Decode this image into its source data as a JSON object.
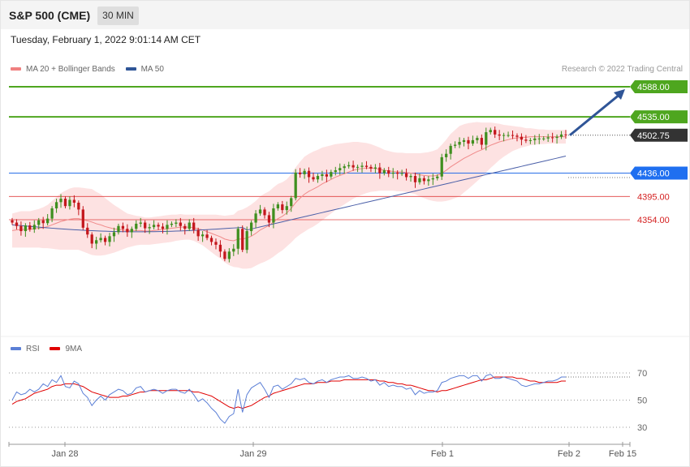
{
  "header": {
    "title": "S&P 500 (CME)",
    "timeframe": "30 MIN"
  },
  "timestamp": "Tuesday, February 1, 2022 9:01:14 AM CET",
  "legend": {
    "ma20_bb": "MA 20 + Bollinger Bands",
    "ma50": "MA 50",
    "rsi": "RSI",
    "ma9": "9MA",
    "colors": {
      "ma20": "#f08080",
      "ma50": "#2f5597",
      "rsi": "#5b7fd6",
      "ma9": "#e00000"
    }
  },
  "credit": "Research © 2022 Trading Central",
  "chart_data": [
    {
      "type": "candlestick",
      "xlabels": [
        "Jan 28",
        "Jan 29",
        "Feb 1",
        "Feb 2",
        "Feb 15"
      ],
      "ylim": [
        4150,
        4598
      ],
      "levels": [
        {
          "value": 4588.0,
          "label": "4588.00",
          "kind": "resistance"
        },
        {
          "value": 4535.0,
          "label": "4535.00",
          "kind": "resistance"
        },
        {
          "value": 4502.75,
          "label": "4502.75",
          "kind": "last"
        },
        {
          "value": 4436.0,
          "label": "4436.00",
          "kind": "pivot"
        },
        {
          "value": 4395.0,
          "label": "4395.00",
          "kind": "support"
        },
        {
          "value": 4354.0,
          "label": "4354.00",
          "kind": "support"
        }
      ],
      "colors": {
        "up": "#3f8f1f",
        "down": "#c4171d",
        "resistance": "#4ea61f",
        "pivot": "#2a6fe8",
        "support": "#e04040",
        "last": "#333333",
        "arrow": "#2f5597",
        "bands": "#fde2e2"
      },
      "closes": [
        4349,
        4343,
        4334,
        4344,
        4337,
        4345,
        4353,
        4348,
        4356,
        4374,
        4385,
        4391,
        4378,
        4389,
        4384,
        4372,
        4340,
        4328,
        4312,
        4318,
        4322,
        4315,
        4325,
        4332,
        4343,
        4338,
        4332,
        4338,
        4347,
        4349,
        4339,
        4341,
        4345,
        4342,
        4338,
        4345,
        4347,
        4349,
        4343,
        4338,
        4349,
        4336,
        4325,
        4328,
        4322,
        4315,
        4310,
        4298,
        4285,
        4298,
        4303,
        4338,
        4301,
        4334,
        4349,
        4365,
        4372,
        4362,
        4349,
        4374,
        4381,
        4371,
        4378,
        4392,
        4437,
        4434,
        4440,
        4429,
        4425,
        4431,
        4434,
        4430,
        4438,
        4441,
        4445,
        4448,
        4450,
        4446,
        4447,
        4449,
        4447,
        4444,
        4446,
        4436,
        4441,
        4435,
        4437,
        4435,
        4436,
        4429,
        4431,
        4420,
        4427,
        4422,
        4425,
        4427,
        4430,
        4464,
        4470,
        4484,
        4486,
        4491,
        4494,
        4488,
        4494,
        4498,
        4486,
        4508,
        4512,
        4504,
        4502,
        4503,
        4503,
        4502,
        4500,
        4495,
        4493,
        4494,
        4497,
        4497,
        4497,
        4499,
        4498,
        4500,
        4504,
        4502.75
      ],
      "ma20": [
        4335,
        4336,
        4337,
        4337,
        4337,
        4338,
        4339,
        4340,
        4342,
        4345,
        4348,
        4351,
        4353,
        4355,
        4356,
        4356,
        4354,
        4352,
        4350,
        4347,
        4345,
        4342,
        4340,
        4338,
        4337,
        4336,
        4335,
        4335,
        4335,
        4335,
        4334,
        4334,
        4335,
        4336,
        4337,
        4338,
        4339,
        4340,
        4341,
        4341,
        4341,
        4340,
        4338,
        4336,
        4333,
        4330,
        4327,
        4324,
        4320,
        4318,
        4317,
        4320,
        4320,
        4322,
        4325,
        4330,
        4336,
        4340,
        4344,
        4350,
        4356,
        4360,
        4366,
        4374,
        4384,
        4392,
        4399,
        4404,
        4408,
        4412,
        4417,
        4421,
        4425,
        4429,
        4432,
        4435,
        4438,
        4441,
        4443,
        4444,
        4445,
        4445,
        4444,
        4443,
        4441,
        4440,
        4439,
        4438,
        4438,
        4437,
        4436,
        4435,
        4433,
        4432,
        4431,
        4431,
        4432,
        4436,
        4441,
        4447,
        4452,
        4457,
        4462,
        4466,
        4470,
        4474,
        4477,
        4481,
        4485,
        4488,
        4491,
        4493,
        4495,
        4497,
        4498,
        4499,
        4499,
        4500,
        4500,
        4500,
        4500,
        4500,
        4500,
        4500,
        4500,
        4500
      ],
      "bb_width": [
        30,
        31,
        32,
        32,
        32,
        33,
        34,
        36,
        38,
        42,
        46,
        50,
        52,
        54,
        55,
        55,
        56,
        57,
        58,
        56,
        54,
        50,
        46,
        42,
        38,
        34,
        30,
        28,
        26,
        25,
        24,
        24,
        24,
        24,
        24,
        24,
        24,
        23,
        23,
        22,
        22,
        23,
        25,
        27,
        30,
        33,
        36,
        38,
        41,
        44,
        46,
        50,
        52,
        54,
        56,
        57,
        59,
        60,
        60,
        61,
        61,
        60,
        59,
        60,
        62,
        64,
        66,
        66,
        66,
        65,
        64,
        62,
        60,
        58,
        56,
        54,
        52,
        50,
        48,
        46,
        44,
        42,
        40,
        38,
        36,
        35,
        34,
        34,
        34,
        34,
        35,
        36,
        38,
        40,
        42,
        44,
        46,
        50,
        54,
        58,
        60,
        62,
        60,
        58,
        55,
        52,
        48,
        44,
        40,
        36,
        32,
        28,
        25,
        22,
        20,
        18,
        16,
        15,
        14,
        13,
        13,
        12,
        12,
        12,
        12,
        12
      ],
      "ma50_start": 4345,
      "ma50_end": 4466
    },
    {
      "type": "line",
      "name": "RSI",
      "ylim": [
        20,
        80
      ],
      "yticks": [
        70,
        50,
        30
      ],
      "rsi_values": [
        50,
        56,
        54,
        55,
        58,
        56,
        58,
        62,
        60,
        65,
        63,
        68,
        60,
        59,
        64,
        62,
        55,
        52,
        46,
        50,
        53,
        50,
        54,
        56,
        58,
        57,
        54,
        55,
        59,
        60,
        56,
        57,
        58,
        57,
        55,
        57,
        58,
        58,
        56,
        55,
        58,
        54,
        49,
        51,
        48,
        44,
        41,
        36,
        33,
        38,
        40,
        58,
        41,
        54,
        59,
        61,
        63,
        58,
        52,
        60,
        61,
        58,
        60,
        62,
        66,
        65,
        66,
        63,
        62,
        64,
        65,
        63,
        65,
        66,
        67,
        67,
        68,
        66,
        66,
        67,
        66,
        64,
        65,
        61,
        63,
        60,
        61,
        60,
        60,
        58,
        59,
        54,
        57,
        55,
        56,
        56,
        57,
        63,
        64,
        66,
        67,
        68,
        68,
        66,
        68,
        68,
        64,
        68,
        69,
        66,
        66,
        67,
        66,
        65,
        64,
        61,
        60,
        61,
        62,
        62,
        63,
        64,
        64,
        65,
        67,
        67
      ],
      "ma9_values": [
        47,
        49,
        50,
        51,
        53,
        55,
        56,
        57,
        58,
        60,
        61,
        61,
        62,
        62,
        62,
        61,
        60,
        58,
        56,
        55,
        54,
        53,
        52,
        52,
        52,
        53,
        53,
        54,
        55,
        56,
        56,
        57,
        57,
        57,
        57,
        57,
        57,
        57,
        57,
        57,
        57,
        56,
        56,
        55,
        54,
        53,
        51,
        49,
        47,
        45,
        44,
        45,
        44,
        45,
        46,
        48,
        50,
        52,
        53,
        55,
        56,
        57,
        58,
        59,
        60,
        61,
        62,
        62,
        62,
        63,
        63,
        63,
        64,
        64,
        64,
        65,
        65,
        65,
        65,
        65,
        65,
        65,
        65,
        64,
        64,
        63,
        63,
        62,
        62,
        61,
        61,
        60,
        59,
        58,
        57,
        57,
        56,
        57,
        57,
        58,
        59,
        60,
        61,
        62,
        63,
        64,
        65,
        65,
        66,
        67,
        67,
        67,
        67,
        67,
        66,
        66,
        65,
        64,
        64,
        63,
        63,
        63,
        63,
        63,
        64,
        64
      ]
    }
  ]
}
